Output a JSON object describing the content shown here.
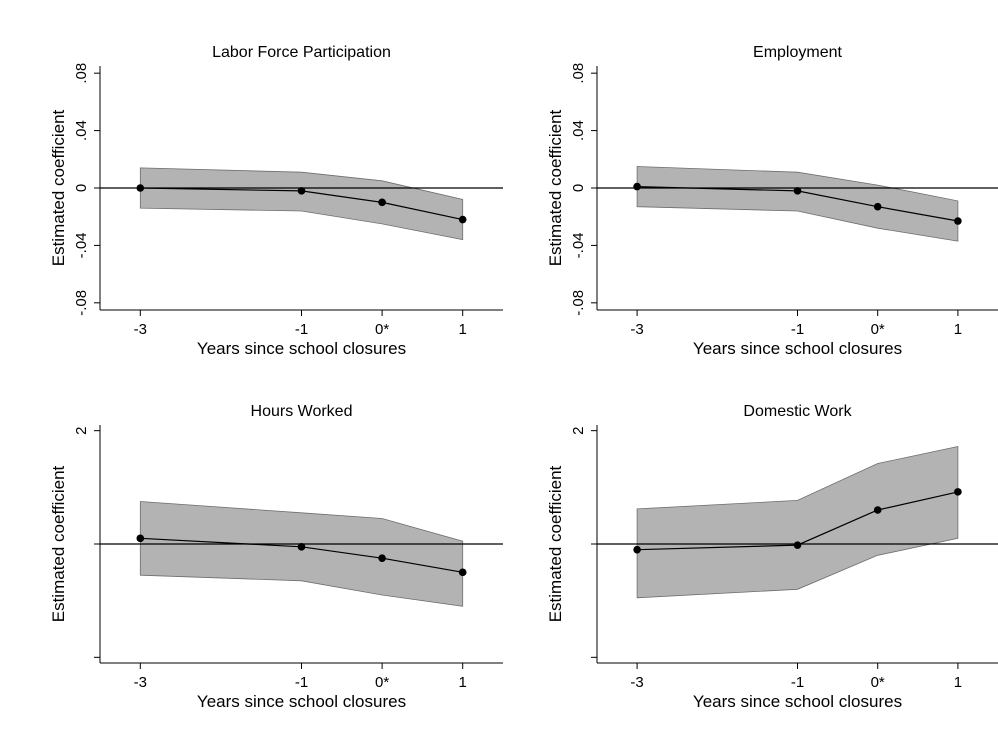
{
  "chart_data": [
    {
      "type": "line",
      "title": "Labor Force Participation",
      "xlabel": "Years since school closures",
      "ylabel": "Estimated coefficient",
      "x": [
        -3,
        -1,
        0,
        1
      ],
      "xtick_labels": [
        "-3",
        "-1",
        "0*",
        "1"
      ],
      "xlim": [
        -3.5,
        1.5
      ],
      "ylim": [
        -0.085,
        0.085
      ],
      "yticks": [
        -0.08,
        -0.04,
        0,
        0.04,
        0.08
      ],
      "ytick_labels": [
        "-.08",
        "-.04",
        "0",
        ".04",
        ".08"
      ],
      "series": [
        {
          "values": [
            0.0,
            -0.002,
            -0.01,
            -0.022
          ],
          "ci_lower": [
            -0.014,
            -0.016,
            -0.025,
            -0.036
          ],
          "ci_upper": [
            0.014,
            0.011,
            0.005,
            -0.008
          ]
        }
      ],
      "reference_line_y": 0,
      "grid": false
    },
    {
      "type": "line",
      "title": "Employment",
      "xlabel": "Years since school closures",
      "ylabel": "Estimated coefficient",
      "x": [
        -3,
        -1,
        0,
        1
      ],
      "xtick_labels": [
        "-3",
        "-1",
        "0*",
        "1"
      ],
      "xlim": [
        -3.5,
        1.5
      ],
      "ylim": [
        -0.085,
        0.085
      ],
      "yticks": [
        -0.08,
        -0.04,
        0,
        0.04,
        0.08
      ],
      "ytick_labels": [
        "-.08",
        "-.04",
        "0",
        ".04",
        ".08"
      ],
      "series": [
        {
          "values": [
            0.001,
            -0.002,
            -0.013,
            -0.023
          ],
          "ci_lower": [
            -0.013,
            -0.016,
            -0.028,
            -0.037
          ],
          "ci_upper": [
            0.015,
            0.011,
            0.002,
            -0.009
          ]
        }
      ],
      "reference_line_y": 0,
      "grid": false
    },
    {
      "type": "line",
      "title": "Hours Worked",
      "xlabel": "Years since school closures",
      "ylabel": "Estimated coefficient",
      "x": [
        -3,
        -1,
        0,
        1
      ],
      "xtick_labels": [
        "-3",
        "-1",
        "0*",
        "1"
      ],
      "xlim": [
        -3.5,
        1.5
      ],
      "ylim": [
        -2.1,
        2.1
      ],
      "yticks": [
        -2,
        0,
        2
      ],
      "ytick_labels": [
        "",
        "",
        "2"
      ],
      "series": [
        {
          "values": [
            0.1,
            -0.05,
            -0.25,
            -0.5
          ],
          "ci_lower": [
            -0.55,
            -0.65,
            -0.9,
            -1.1
          ],
          "ci_upper": [
            0.75,
            0.55,
            0.45,
            0.05
          ]
        }
      ],
      "reference_line_y": 0,
      "grid": false
    },
    {
      "type": "line",
      "title": "Domestic Work",
      "xlabel": "Years since school closures",
      "ylabel": "Estimated coefficient",
      "x": [
        -3,
        -1,
        0,
        1
      ],
      "xtick_labels": [
        "-3",
        "-1",
        "0*",
        "1"
      ],
      "xlim": [
        -3.5,
        1.5
      ],
      "ylim": [
        -2.1,
        2.1
      ],
      "yticks": [
        -2,
        0,
        2
      ],
      "ytick_labels": [
        "",
        "",
        "2"
      ],
      "series": [
        {
          "values": [
            -0.1,
            -0.02,
            0.6,
            0.92
          ],
          "ci_lower": [
            -0.95,
            -0.8,
            -0.2,
            0.1
          ],
          "ci_upper": [
            0.62,
            0.77,
            1.42,
            1.72
          ]
        }
      ],
      "reference_line_y": 0,
      "grid": false
    }
  ],
  "colors": {
    "band": "#b3b3b3",
    "band_edge": "#6e6e6e",
    "line": "#000000",
    "axis": "#000000"
  }
}
